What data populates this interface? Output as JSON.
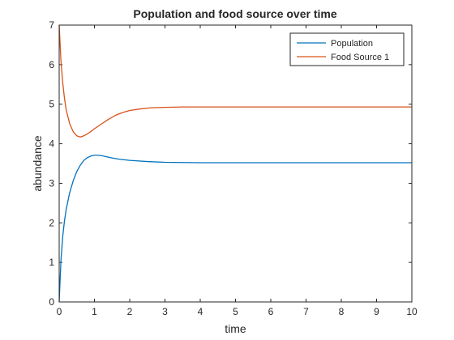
{
  "chart_data": {
    "type": "line",
    "title": "Population and food source over time",
    "xlabel": "time",
    "ylabel": "abundance",
    "xlim": [
      0,
      10
    ],
    "ylim": [
      0,
      7
    ],
    "x_ticks": [
      0,
      1,
      2,
      3,
      4,
      5,
      6,
      7,
      8,
      9,
      10
    ],
    "y_ticks": [
      0,
      1,
      2,
      3,
      4,
      5,
      6,
      7
    ],
    "grid": false,
    "legend_position": "top-right",
    "series": [
      {
        "name": "Population",
        "color": "#0072BD",
        "x": [
          0,
          0.05,
          0.1,
          0.15,
          0.2,
          0.3,
          0.4,
          0.5,
          0.6,
          0.7,
          0.8,
          0.9,
          1.0,
          1.1,
          1.2,
          1.3,
          1.5,
          1.7,
          2.0,
          2.5,
          3.0,
          3.5,
          4.0,
          5.0,
          6.0,
          7.0,
          8.0,
          9.0,
          10.0
        ],
        "values": [
          0,
          1.05,
          1.65,
          2.05,
          2.35,
          2.77,
          3.07,
          3.3,
          3.46,
          3.58,
          3.65,
          3.69,
          3.71,
          3.71,
          3.7,
          3.68,
          3.64,
          3.61,
          3.58,
          3.55,
          3.53,
          3.525,
          3.52,
          3.52,
          3.52,
          3.52,
          3.52,
          3.52,
          3.52
        ]
      },
      {
        "name": "Food Source 1",
        "color": "#D95319",
        "x": [
          0,
          0.05,
          0.1,
          0.15,
          0.2,
          0.3,
          0.4,
          0.5,
          0.6,
          0.7,
          0.8,
          0.9,
          1.0,
          1.2,
          1.4,
          1.6,
          1.8,
          2.0,
          2.3,
          2.6,
          3.0,
          3.5,
          4.0,
          5.0,
          6.0,
          7.0,
          8.0,
          9.0,
          10.0
        ],
        "values": [
          7.0,
          6.1,
          5.55,
          5.15,
          4.85,
          4.5,
          4.3,
          4.2,
          4.17,
          4.2,
          4.25,
          4.31,
          4.38,
          4.5,
          4.62,
          4.72,
          4.79,
          4.84,
          4.88,
          4.91,
          4.92,
          4.93,
          4.93,
          4.93,
          4.93,
          4.93,
          4.93,
          4.93,
          4.93
        ]
      }
    ]
  }
}
